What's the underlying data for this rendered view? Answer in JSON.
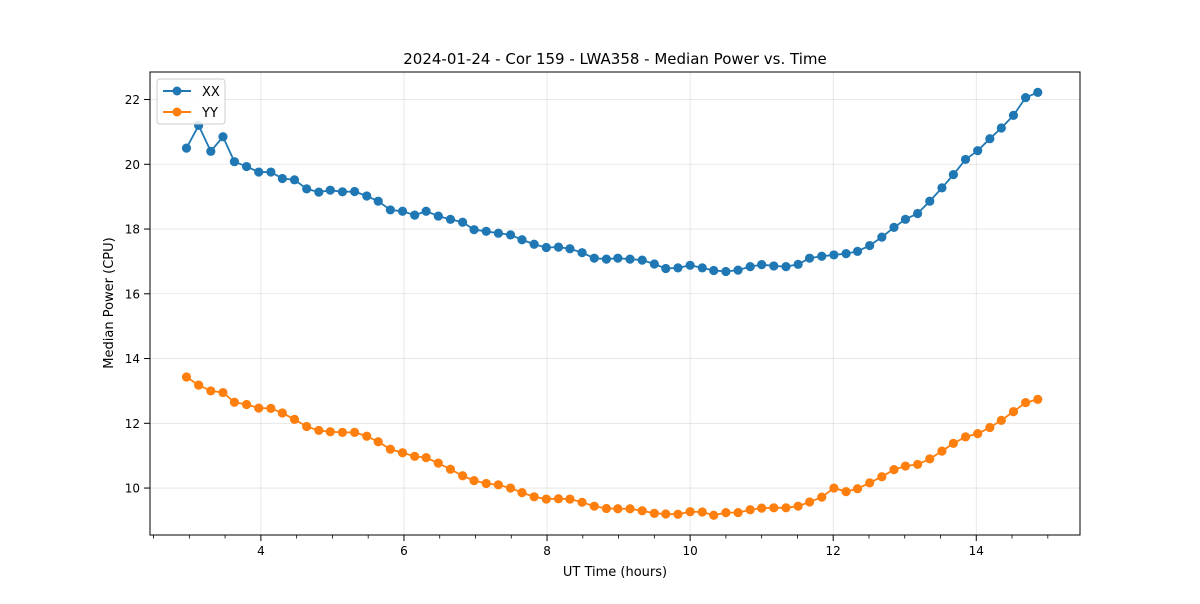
{
  "chart_data": {
    "type": "line",
    "title": "2024-01-24 - Cor 159 - LWA358 - Median Power vs. Time",
    "xlabel": "UT Time (hours)",
    "ylabel": "Median Power (CPU)",
    "xlim": [
      2.45,
      15.45
    ],
    "ylim": [
      8.55,
      22.85
    ],
    "x_ticks": [
      4,
      6,
      8,
      10,
      12,
      14
    ],
    "x_tick_labels": [
      "4",
      "6",
      "8",
      "10",
      "12",
      "14"
    ],
    "x_minor_step": 0.5,
    "y_ticks": [
      10,
      12,
      14,
      16,
      18,
      20,
      22
    ],
    "y_tick_labels": [
      "10",
      "12",
      "14",
      "16",
      "18",
      "20",
      "22"
    ],
    "grid": true,
    "legend_position": "upper-left",
    "x": [
      2.96,
      3.13,
      3.3,
      3.47,
      3.63,
      3.8,
      3.97,
      4.14,
      4.3,
      4.47,
      4.64,
      4.81,
      4.97,
      5.14,
      5.31,
      5.48,
      5.64,
      5.81,
      5.98,
      6.15,
      6.31,
      6.48,
      6.65,
      6.82,
      6.98,
      7.15,
      7.32,
      7.49,
      7.65,
      7.82,
      7.99,
      8.16,
      8.32,
      8.49,
      8.66,
      8.83,
      8.99,
      9.16,
      9.33,
      9.5,
      9.66,
      9.83,
      10.0,
      10.17,
      10.33,
      10.5,
      10.67,
      10.84,
      11.0,
      11.17,
      11.34,
      11.51,
      11.67,
      11.84,
      12.01,
      12.18,
      12.34,
      12.51,
      12.68,
      12.85,
      13.01,
      13.18,
      13.35,
      13.52,
      13.68,
      13.85,
      14.02,
      14.19,
      14.35,
      14.52,
      14.69,
      14.86
    ],
    "series": [
      {
        "name": "XX",
        "color": "#1f77b4",
        "values": [
          20.5,
          21.2,
          20.4,
          20.85,
          20.08,
          19.93,
          19.76,
          19.76,
          19.56,
          19.52,
          19.24,
          19.14,
          19.2,
          19.15,
          19.16,
          19.02,
          18.86,
          18.59,
          18.55,
          18.43,
          18.55,
          18.4,
          18.3,
          18.21,
          17.98,
          17.93,
          17.87,
          17.82,
          17.67,
          17.53,
          17.43,
          17.44,
          17.39,
          17.27,
          17.1,
          17.07,
          17.1,
          17.07,
          17.04,
          16.92,
          16.78,
          16.8,
          16.88,
          16.8,
          16.72,
          16.69,
          16.73,
          16.84,
          16.9,
          16.86,
          16.84,
          16.91,
          17.1,
          17.16,
          17.2,
          17.24,
          17.31,
          17.49,
          17.75,
          18.05,
          18.3,
          18.48,
          18.86,
          19.27,
          19.68,
          20.15,
          20.42,
          20.79,
          21.12,
          21.51,
          22.06,
          22.22
        ]
      },
      {
        "name": "YY",
        "color": "#ff7f0e",
        "values": [
          13.43,
          13.18,
          13.0,
          12.95,
          12.65,
          12.58,
          12.47,
          12.46,
          12.32,
          12.12,
          11.9,
          11.78,
          11.74,
          11.72,
          11.72,
          11.6,
          11.43,
          11.2,
          11.09,
          10.98,
          10.94,
          10.77,
          10.58,
          10.38,
          10.23,
          10.14,
          10.1,
          10.0,
          9.86,
          9.73,
          9.66,
          9.67,
          9.66,
          9.56,
          9.44,
          9.37,
          9.36,
          9.36,
          9.3,
          9.22,
          9.2,
          9.19,
          9.27,
          9.26,
          9.16,
          9.24,
          9.24,
          9.33,
          9.38,
          9.39,
          9.39,
          9.44,
          9.57,
          9.72,
          10.0,
          9.89,
          9.98,
          10.16,
          10.35,
          10.57,
          10.68,
          10.73,
          10.9,
          11.14,
          11.38,
          11.58,
          11.68,
          11.87,
          12.09,
          12.36,
          12.64,
          12.74
        ]
      }
    ]
  }
}
